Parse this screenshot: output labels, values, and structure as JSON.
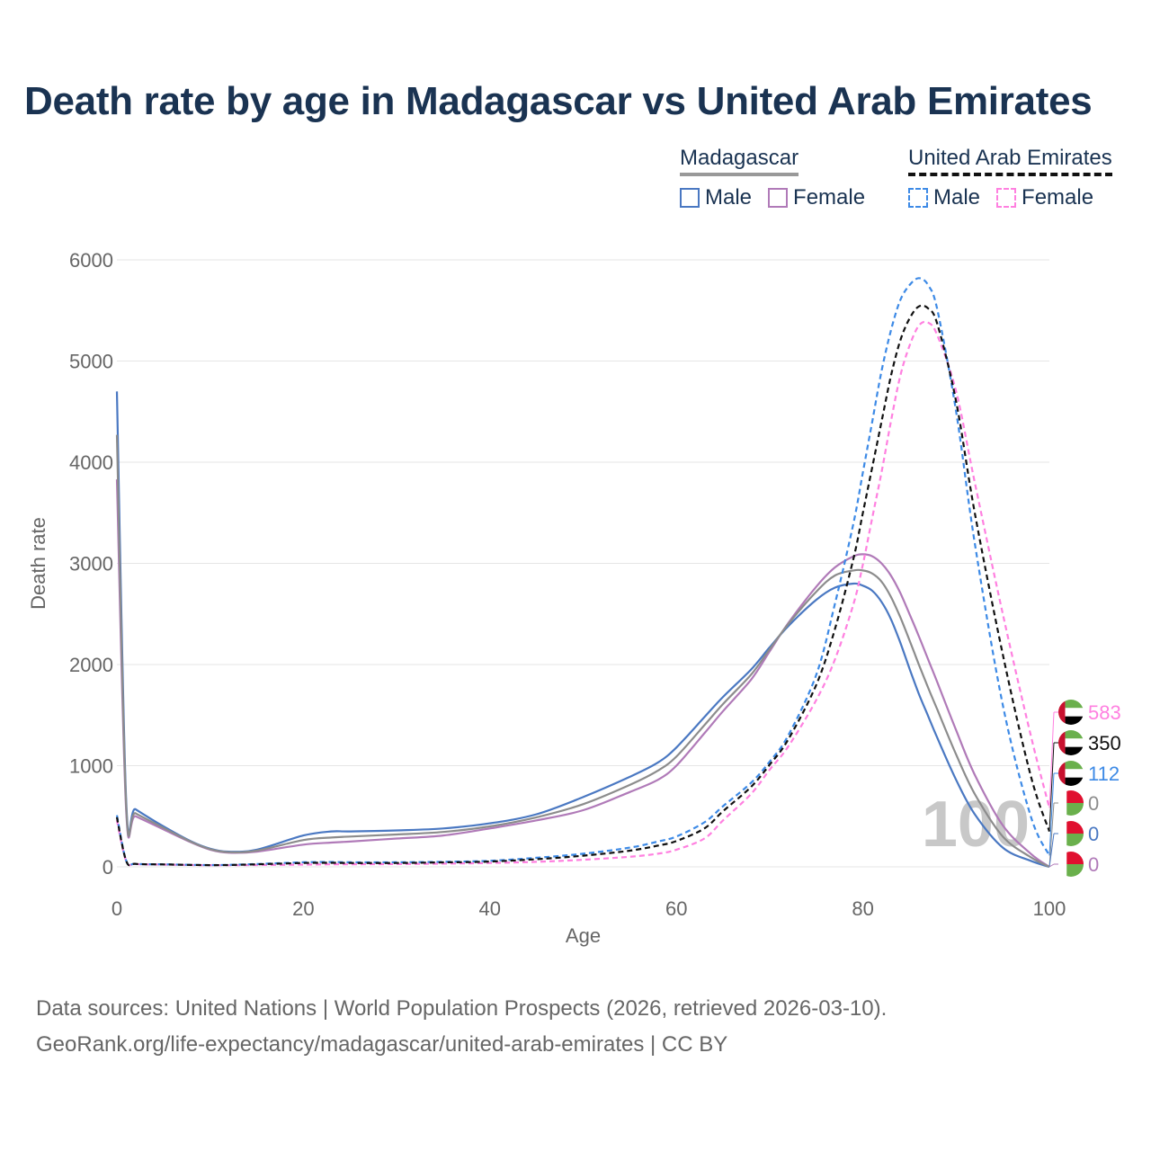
{
  "title": "Death rate by age in Madagascar vs United Arab Emirates",
  "legend": {
    "madagascar": {
      "label": "Madagascar",
      "male": "Male",
      "female": "Female"
    },
    "uae": {
      "label": "United Arab Emirates",
      "male": "Male",
      "female": "Female"
    }
  },
  "colors": {
    "mg_male": "#4a78c2",
    "mg_female": "#b07ab8",
    "mg_total": "#8c8c8c",
    "ae_male": "#3d8ae6",
    "ae_female": "#ff80e0",
    "ae_total": "#111111"
  },
  "chart_data": {
    "type": "line",
    "xlabel": "Age",
    "ylabel": "Death rate",
    "xlim": [
      0,
      100
    ],
    "ylim": [
      0,
      6000
    ],
    "x_ticks": [
      0,
      20,
      40,
      60,
      80,
      100
    ],
    "y_ticks": [
      0,
      1000,
      2000,
      3000,
      4000,
      5000,
      6000
    ],
    "x": [
      0,
      1,
      2,
      5,
      8,
      10,
      12,
      15,
      20,
      23,
      25,
      30,
      35,
      40,
      45,
      50,
      55,
      58,
      60,
      63,
      65,
      68,
      70,
      72,
      75,
      77,
      79,
      80,
      81,
      82,
      83,
      84,
      85,
      86,
      87,
      88,
      90,
      92,
      95,
      98,
      100
    ],
    "series": [
      {
        "name": "Madagascar Male",
        "key": "mg_male",
        "dashed": false,
        "values": [
          4700,
          640,
          570,
          400,
          250,
          180,
          150,
          170,
          310,
          350,
          350,
          360,
          380,
          430,
          520,
          690,
          890,
          1030,
          1180,
          1480,
          1680,
          1950,
          2170,
          2380,
          2640,
          2760,
          2800,
          2780,
          2730,
          2620,
          2450,
          2220,
          1960,
          1710,
          1490,
          1270,
          860,
          520,
          190,
          60,
          0
        ]
      },
      {
        "name": "Madagascar Female",
        "key": "mg_female",
        "dashed": false,
        "values": [
          3830,
          540,
          500,
          370,
          240,
          170,
          140,
          150,
          220,
          240,
          250,
          280,
          310,
          380,
          460,
          560,
          740,
          860,
          1000,
          1320,
          1540,
          1850,
          2130,
          2410,
          2770,
          2960,
          3070,
          3090,
          3070,
          3000,
          2880,
          2710,
          2500,
          2280,
          2050,
          1820,
          1350,
          910,
          410,
          130,
          0
        ]
      },
      {
        "name": "Madagascar Total",
        "key": "mg_total",
        "dashed": false,
        "values": [
          4270,
          590,
          530,
          385,
          245,
          175,
          145,
          160,
          265,
          290,
          300,
          320,
          345,
          400,
          490,
          620,
          810,
          950,
          1090,
          1400,
          1610,
          1900,
          2150,
          2400,
          2720,
          2880,
          2930,
          2930,
          2900,
          2820,
          2670,
          2470,
          2240,
          2000,
          1770,
          1550,
          1110,
          720,
          300,
          95,
          0
        ]
      },
      {
        "name": "United Arab Emirates Male",
        "key": "ae_male",
        "dashed": true,
        "values": [
          510,
          60,
          30,
          25,
          20,
          18,
          20,
          28,
          45,
          48,
          45,
          45,
          50,
          60,
          90,
          130,
          190,
          250,
          300,
          440,
          600,
          830,
          1040,
          1300,
          1900,
          2600,
          3400,
          3900,
          4400,
          4900,
          5300,
          5600,
          5750,
          5820,
          5750,
          5500,
          4500,
          3200,
          1600,
          500,
          112
        ]
      },
      {
        "name": "United Arab Emirates Female",
        "key": "ae_female",
        "dashed": true,
        "values": [
          460,
          55,
          28,
          22,
          18,
          16,
          16,
          18,
          22,
          25,
          25,
          28,
          32,
          38,
          50,
          70,
          100,
          130,
          170,
          280,
          460,
          720,
          960,
          1190,
          1650,
          2050,
          2600,
          2990,
          3450,
          3900,
          4400,
          4850,
          5150,
          5350,
          5380,
          5250,
          4700,
          3800,
          2500,
          1300,
          583
        ]
      },
      {
        "name": "United Arab Emirates Total",
        "key": "ae_total",
        "dashed": true,
        "values": [
          490,
          58,
          29,
          24,
          19,
          17,
          18,
          25,
          38,
          40,
          38,
          38,
          44,
          52,
          76,
          110,
          160,
          210,
          255,
          380,
          550,
          790,
          1010,
          1260,
          1800,
          2350,
          3050,
          3500,
          3950,
          4400,
          4850,
          5200,
          5420,
          5540,
          5520,
          5360,
          4600,
          3500,
          2100,
          900,
          350
        ]
      }
    ],
    "end_labels": [
      {
        "text": "583",
        "key": "ae_female",
        "country": "United Arab Emirates"
      },
      {
        "text": "350",
        "key": "ae_total",
        "country": "United Arab Emirates"
      },
      {
        "text": "112",
        "key": "ae_male",
        "country": "United Arab Emirates"
      },
      {
        "text": "0",
        "key": "mg_total",
        "country": "Madagascar"
      },
      {
        "text": "0",
        "key": "mg_male",
        "country": "Madagascar"
      },
      {
        "text": "0",
        "key": "mg_female",
        "country": "Madagascar"
      }
    ],
    "watermark": "100"
  },
  "footer": {
    "line1": "Data sources: United Nations | World Population Prospects (2026, retrieved 2026-03-10).",
    "line2": "GeoRank.org/life-expectancy/madagascar/united-arab-emirates | CC BY"
  }
}
